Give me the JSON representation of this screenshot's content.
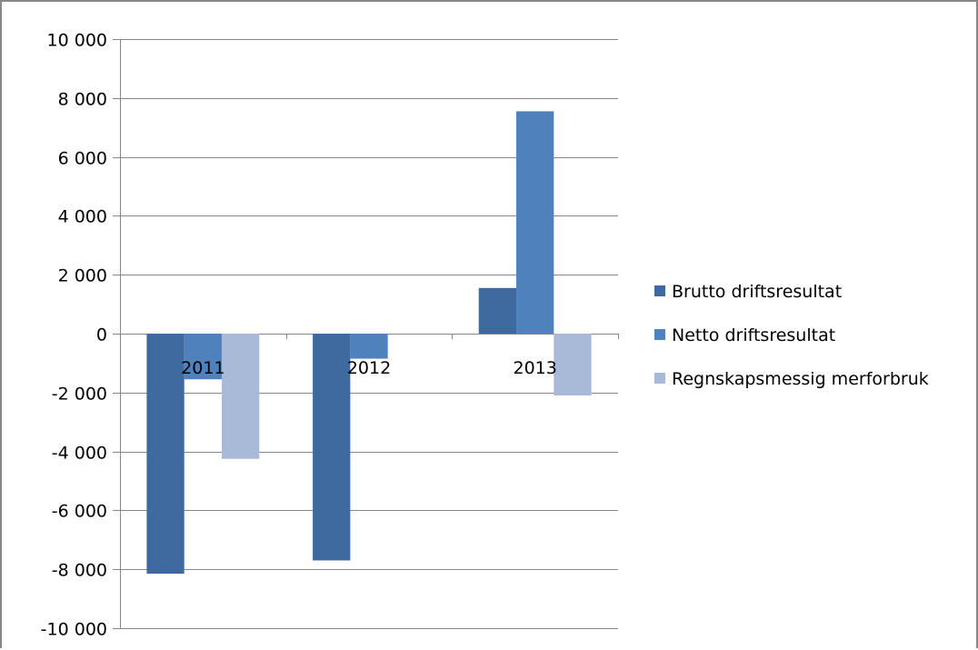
{
  "chart_data": {
    "type": "bar",
    "title": "",
    "xlabel": "",
    "ylabel": "",
    "categories": [
      "2011",
      "2012",
      "2013"
    ],
    "series": [
      {
        "name": "Brutto driftsresultat",
        "values": [
          -8150,
          -7700,
          1550
        ],
        "color": "#3f6aa0"
      },
      {
        "name": "Netto driftsresultat",
        "values": [
          -1550,
          -850,
          7550
        ],
        "color": "#4f81bd"
      },
      {
        "name": "Regnskapsmessig merforbruk",
        "values": [
          -4250,
          0,
          -2100
        ],
        "color": "#a9b9d8"
      }
    ],
    "ylim": [
      -10000,
      10000
    ],
    "yticks": [
      10000,
      8000,
      6000,
      4000,
      2000,
      0,
      -2000,
      -4000,
      -6000,
      -8000,
      -10000
    ],
    "ytick_labels": [
      "10 000",
      "8 000",
      "6 000",
      "4 000",
      "2 000",
      "0",
      "-2 000",
      "-4 000",
      "-6 000",
      "-8 000",
      "-10 000"
    ],
    "grid": true,
    "legend_position": "right"
  }
}
